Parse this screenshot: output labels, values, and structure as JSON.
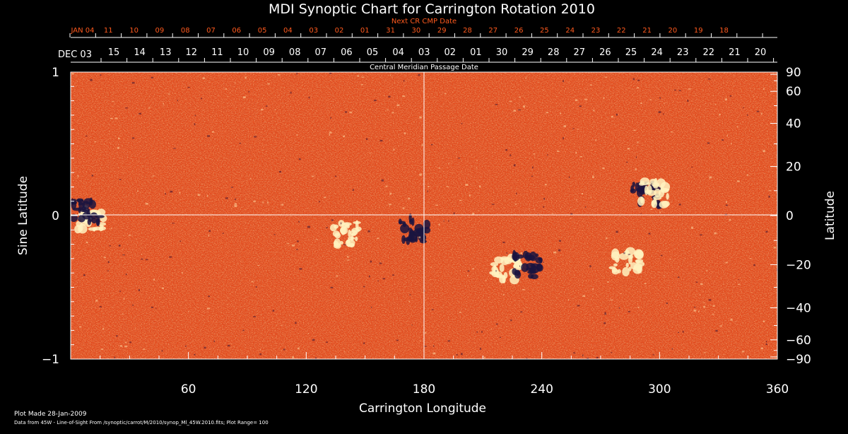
{
  "chart_data": {
    "type": "heatmap",
    "title": "MDI Synoptic Chart for Carrington Rotation 2010",
    "top_axis": {
      "label": "Next CR CMP Date",
      "labels": [
        "JAN 04",
        "11",
        "10",
        "09",
        "08",
        "07",
        "06",
        "05",
        "04",
        "03",
        "02",
        "01",
        "31",
        "30",
        "29",
        "28",
        "27",
        "26",
        "25",
        "24",
        "23",
        "22",
        "21",
        "20",
        "19",
        "18"
      ]
    },
    "cmp_axis": {
      "label": "Central Meridian Passage Date",
      "start_label": "DEC 03",
      "labels": [
        "15",
        "14",
        "13",
        "12",
        "11",
        "10",
        "09",
        "08",
        "07",
        "06",
        "05",
        "04",
        "03",
        "02",
        "01",
        "30",
        "29",
        "28",
        "27",
        "26",
        "25",
        "24",
        "23",
        "22",
        "21",
        "20"
      ]
    },
    "xlabel": "Carrington Longitude",
    "xlim": [
      0,
      360
    ],
    "x_ticks": [
      "60",
      "120",
      "180",
      "240",
      "300",
      "360"
    ],
    "ylabel": "Sine Latitude",
    "ylim": [
      -1,
      1
    ],
    "y_ticks": [
      "1",
      "0",
      "−1"
    ],
    "y2label": "Latitude",
    "y2_ticks": [
      "90",
      "60",
      "40",
      "20",
      "0",
      "−20",
      "−40",
      "−60",
      "−90"
    ],
    "colormap": {
      "background": "#e8501a",
      "positive": "#fff2c0",
      "negative": "#1a1440"
    },
    "features": [
      {
        "polarity": "positive",
        "lon": 10,
        "sinlat": -0.02
      },
      {
        "polarity": "negative",
        "lon": 8,
        "sinlat": 0.03
      },
      {
        "polarity": "positive",
        "lon": 140,
        "sinlat": -0.13
      },
      {
        "polarity": "negative",
        "lon": 175,
        "sinlat": -0.1
      },
      {
        "polarity": "positive",
        "lon": 222,
        "sinlat": -0.37
      },
      {
        "polarity": "negative",
        "lon": 233,
        "sinlat": -0.35
      },
      {
        "polarity": "positive",
        "lon": 283,
        "sinlat": -0.33
      },
      {
        "polarity": "negative",
        "lon": 293,
        "sinlat": 0.15
      },
      {
        "polarity": "positive",
        "lon": 297,
        "sinlat": 0.16
      }
    ]
  },
  "footer": {
    "plot_made": "Plot Made 28-Jan-2009",
    "data_source": "Data from 45W - Line-of-Sight From /synoptic/carrot/M/2010/synop_Ml_45W.2010.fits; Plot Range=  100"
  }
}
